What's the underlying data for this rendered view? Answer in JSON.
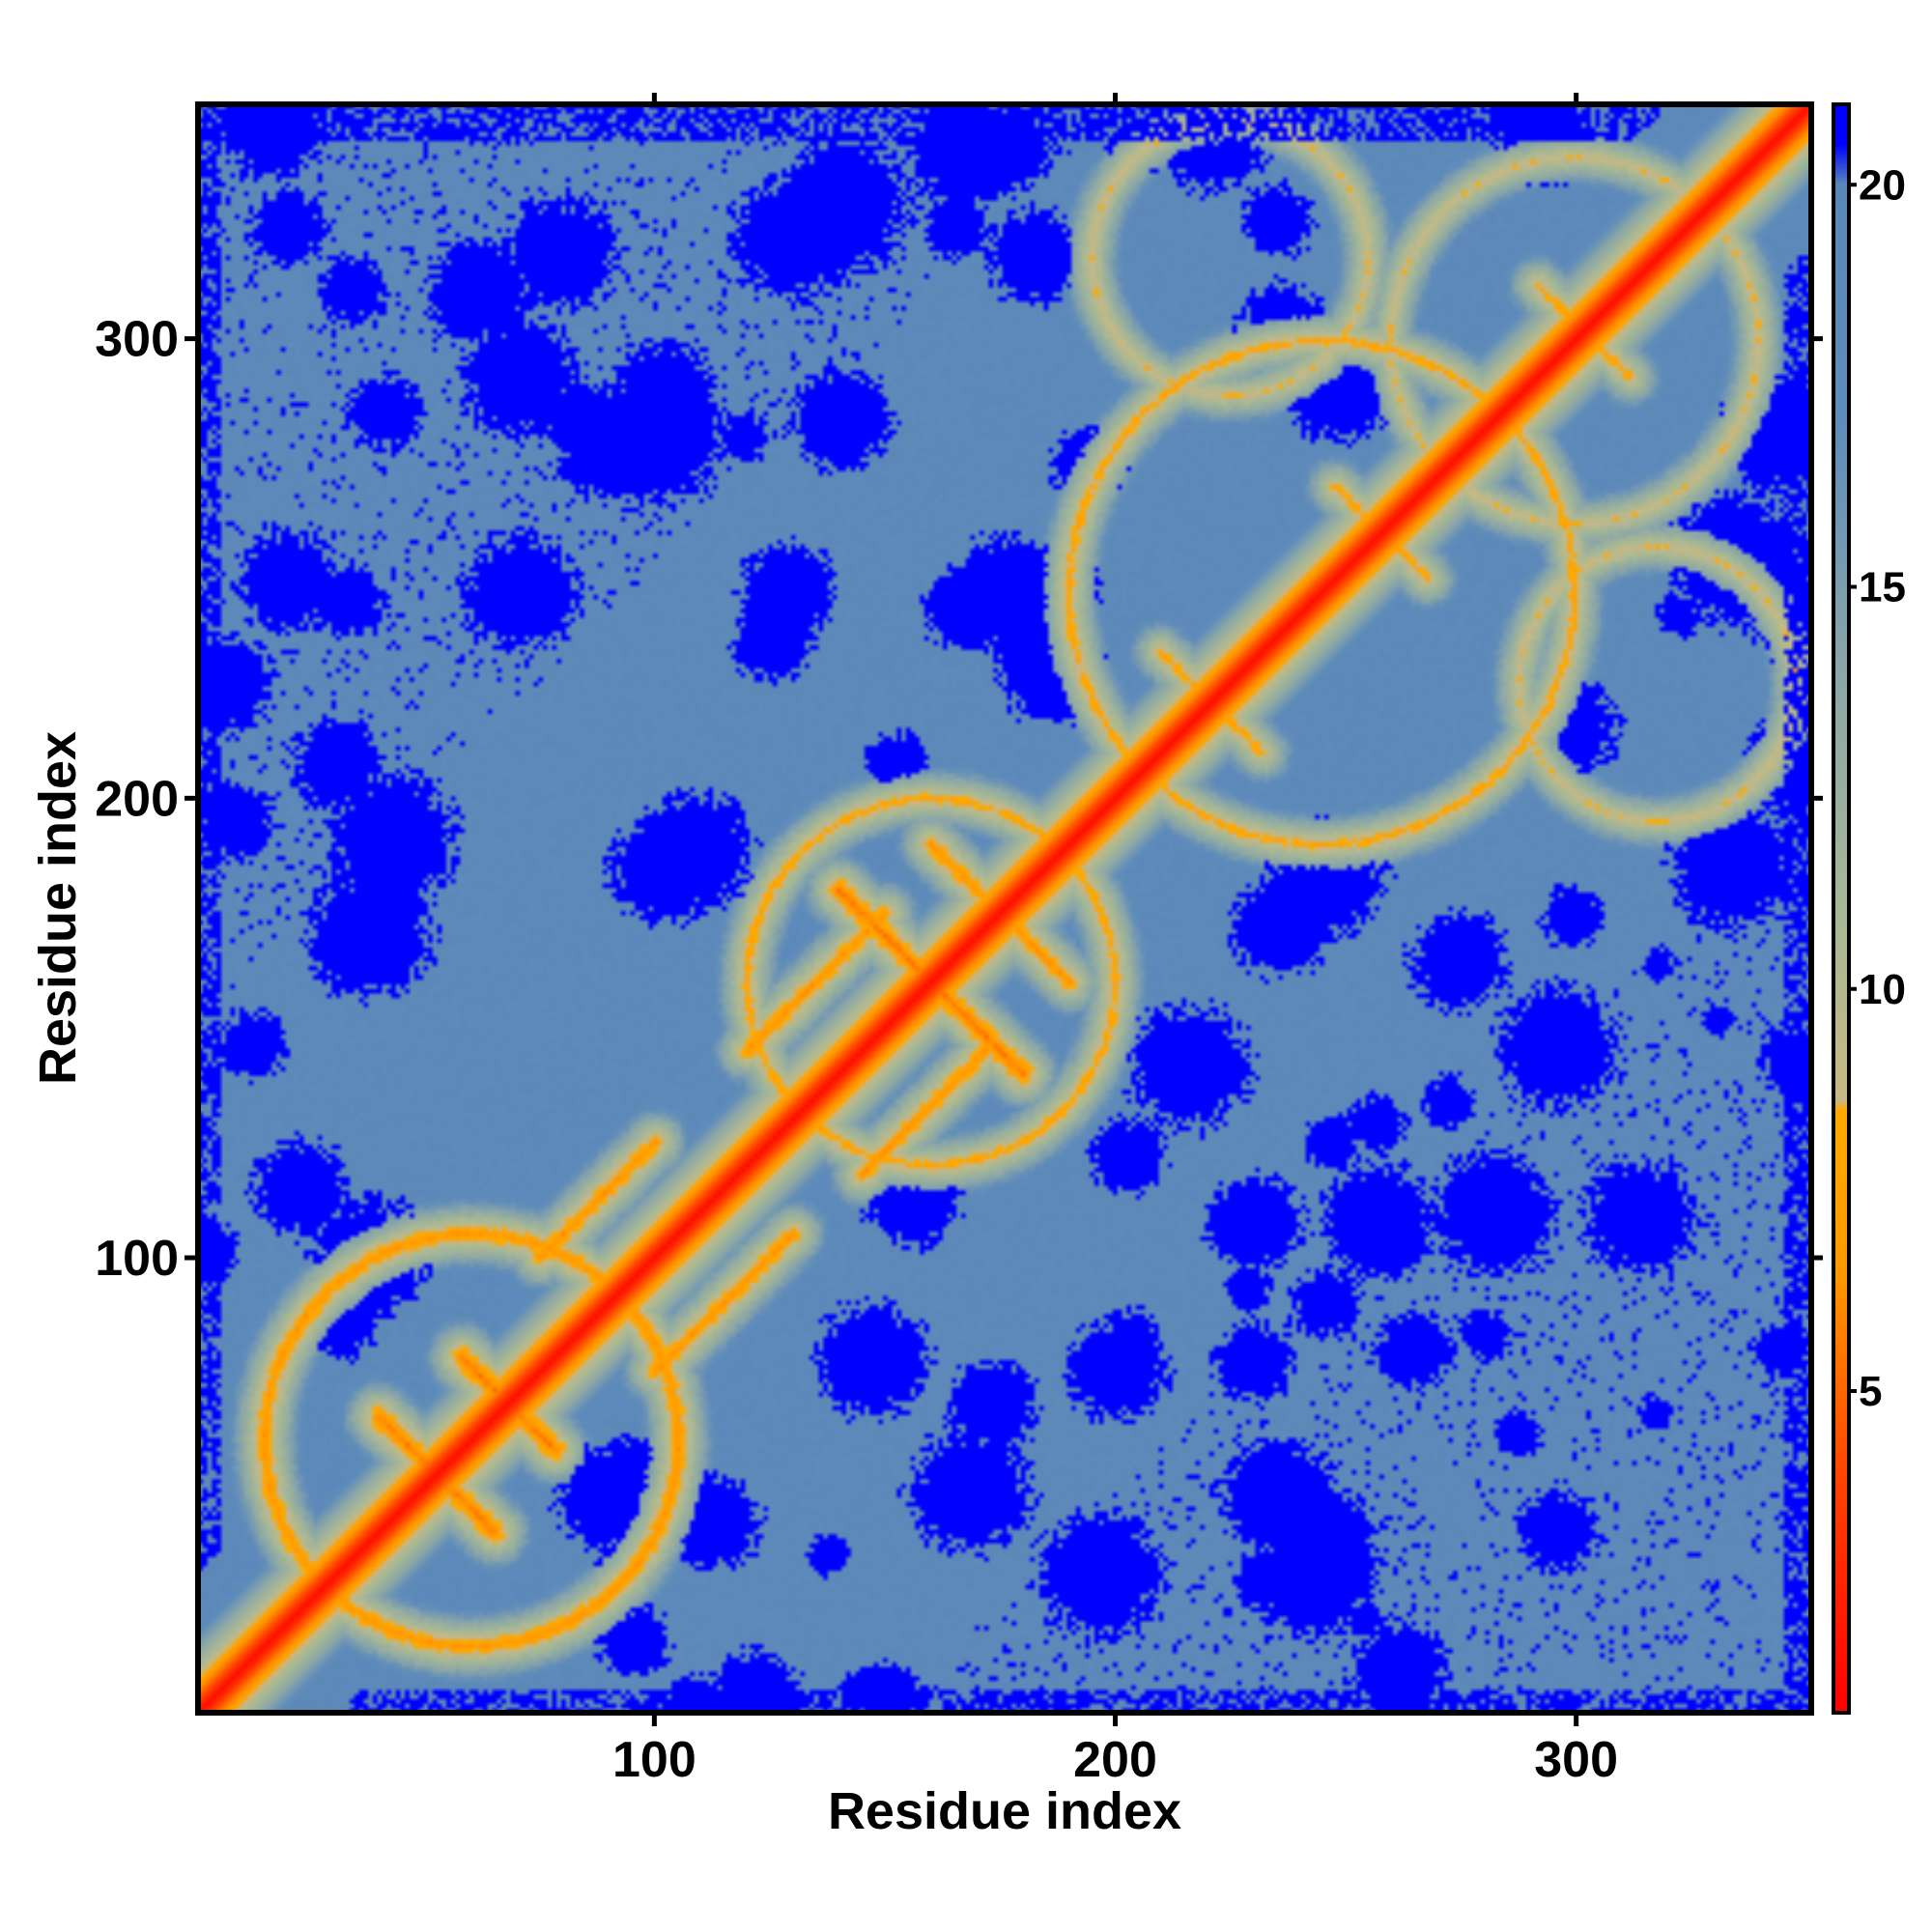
{
  "chart_data": {
    "type": "heatmap",
    "title": "",
    "xlabel": "Residue index",
    "ylabel": "Residue index",
    "xlim": [
      1,
      351
    ],
    "ylim": [
      1,
      351
    ],
    "x_ticks": [
      100,
      200,
      300
    ],
    "y_ticks": [
      100,
      200,
      300
    ],
    "colorbar": {
      "min": 1,
      "max": 21,
      "ticks": [
        5,
        10,
        15,
        20
      ],
      "stops": [
        {
          "value": 1,
          "color": "#ff0000"
        },
        {
          "value": 4,
          "color": "#ff4500"
        },
        {
          "value": 6.5,
          "color": "#ff9900"
        },
        {
          "value": 8.5,
          "color": "#ffaa00"
        },
        {
          "value": 8.6,
          "color": "#c9b884"
        },
        {
          "value": 11,
          "color": "#a6b896"
        },
        {
          "value": 14,
          "color": "#8aa6a8"
        },
        {
          "value": 17,
          "color": "#5f8cba"
        },
        {
          "value": 20,
          "color": "#5a87b8"
        },
        {
          "value": 20.5,
          "color": "#0000ff"
        },
        {
          "value": 21,
          "color": "#0000ff"
        }
      ]
    },
    "colors": {
      "contact": "#ff2200",
      "near": "#ff8800",
      "mid": "#b9bc8e",
      "far": "#5b88b9",
      "cutoff": "#0000ff"
    },
    "series": [
      {
        "kind": "diagonal",
        "x": [
          1,
          351
        ],
        "y": [
          1,
          351
        ],
        "value": 2
      },
      {
        "kind": "antidiagonal",
        "x": [
          40,
          65
        ],
        "y": [
          65,
          40
        ],
        "value": 5
      },
      {
        "kind": "antidiagonal",
        "x": [
          58,
          78
        ],
        "y": [
          78,
          58
        ],
        "value": 5
      },
      {
        "kind": "antidiagonal",
        "x": [
          140,
          180
        ],
        "y": [
          180,
          140
        ],
        "value": 5
      },
      {
        "kind": "antidiagonal",
        "x": [
          160,
          190
        ],
        "y": [
          190,
          160
        ],
        "value": 6
      },
      {
        "kind": "antidiagonal",
        "x": [
          210,
          232
        ],
        "y": [
          232,
          210
        ],
        "value": 7
      },
      {
        "kind": "antidiagonal",
        "x": [
          248,
          268
        ],
        "y": [
          268,
          248
        ],
        "value": 7
      },
      {
        "kind": "antidiagonal",
        "x": [
          292,
          312
        ],
        "y": [
          312,
          292
        ],
        "value": 7
      },
      {
        "kind": "parallel",
        "x": [
          75,
          100
        ],
        "y": [
          100,
          125
        ],
        "value": 6
      },
      {
        "kind": "parallel",
        "x": [
          100,
          130
        ],
        "y": [
          75,
          105
        ],
        "value": 6
      },
      {
        "kind": "parallel",
        "x": [
          120,
          150
        ],
        "y": [
          145,
          175
        ],
        "value": 6
      },
      {
        "kind": "parallel",
        "x": [
          145,
          172
        ],
        "y": [
          118,
          145
        ],
        "value": 6
      },
      {
        "kind": "ring",
        "center": [
          245,
          245
        ],
        "radius": 55,
        "value": 7
      },
      {
        "kind": "ring",
        "center": [
          300,
          300
        ],
        "radius": 40,
        "value": 8
      },
      {
        "kind": "ring",
        "center": [
          318,
          225
        ],
        "radius": 30,
        "value": 8
      },
      {
        "kind": "ring",
        "center": [
          225,
          318
        ],
        "radius": 30,
        "value": 8
      },
      {
        "kind": "ring",
        "center": [
          60,
          60
        ],
        "radius": 45,
        "value": 6
      },
      {
        "kind": "ring",
        "center": [
          160,
          160
        ],
        "radius": 40,
        "value": 7
      }
    ]
  }
}
